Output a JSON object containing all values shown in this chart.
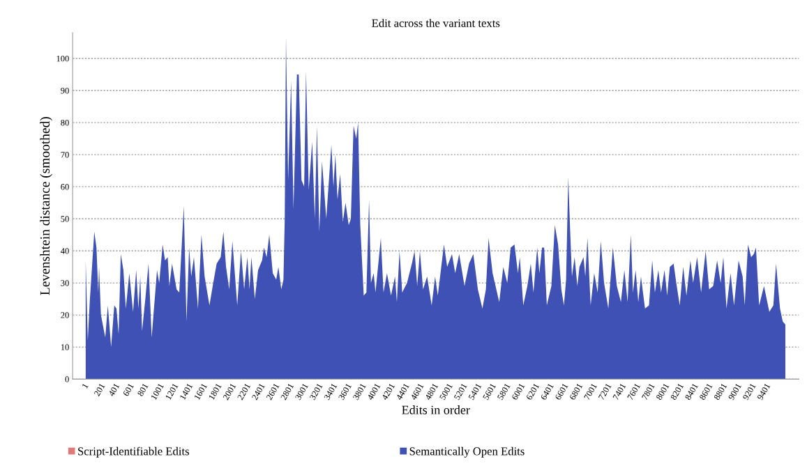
{
  "chart_data": {
    "type": "area",
    "title": "Edit across the variant texts",
    "xlabel": "Edits in order",
    "ylabel": "Levenshtein distance (smoothed)",
    "x": [
      1,
      30,
      57,
      120,
      150,
      175,
      186,
      212,
      272,
      308,
      353,
      397,
      427,
      457,
      487,
      523,
      557,
      605,
      657,
      701,
      731,
      757,
      782,
      827,
      871,
      915,
      989,
      1019,
      1067,
      1100,
      1137,
      1160,
      1197,
      1260,
      1297,
      1360,
      1397,
      1434,
      1463,
      1500,
      1556,
      1604,
      1648,
      1715,
      1760,
      1815,
      1871,
      1908,
      1945,
      1989,
      2033,
      2100,
      2152,
      2196,
      2240,
      2270,
      2296,
      2344,
      2389,
      2444,
      2470,
      2507,
      2544,
      2592,
      2640,
      2670,
      2710,
      2740,
      2758,
      2775,
      2805,
      2846,
      2879,
      2927,
      2952,
      2990,
      3027,
      3053,
      3090,
      3138,
      3175,
      3204,
      3237,
      3274,
      3333,
      3404,
      3433,
      3459,
      3489,
      3526,
      3563,
      3600,
      3644,
      3674,
      3711,
      3748,
      3774,
      3804,
      3852,
      3889,
      3926,
      3952,
      3990,
      4015,
      4089,
      4126,
      4174,
      4230,
      4285,
      4311,
      4348,
      4385,
      4452,
      4519,
      4556,
      4593,
      4630,
      4674,
      4730,
      4793,
      4841,
      4878,
      4963,
      5008,
      5074,
      5119,
      5174,
      5248,
      5311,
      5370,
      5433,
      5496,
      5544,
      5581,
      5637,
      5729,
      5785,
      5840,
      5888,
      5940,
      5988,
      6014,
      6062,
      6118,
      6166,
      6203,
      6255,
      6285,
      6322,
      6351,
      6388,
      6451,
      6499,
      6544,
      6589,
      6625,
      6655,
      6685,
      6710,
      6736,
      6773,
      6811,
      6840,
      6896,
      6921,
      6951,
      6995,
      7044,
      7092,
      7136,
      7181,
      7240,
      7303,
      7358,
      7414,
      7462,
      7507,
      7552,
      7581,
      7618,
      7655,
      7692,
      7748,
      7803,
      7848,
      7885,
      7933,
      7970,
      8018,
      8055,
      8092,
      8144,
      8181,
      8229,
      8277,
      8322,
      8377,
      8414,
      8470,
      8525,
      8588,
      8636,
      8692,
      8747,
      8796,
      8833,
      8877,
      8933,
      8981,
      9044,
      9100,
      9129,
      9174,
      9218,
      9255,
      9285,
      9329,
      9396,
      9470,
      9526,
      9563,
      9618,
      9655,
      9692
    ],
    "series": [
      {
        "name": "Script-Identifiable Edits",
        "color": "#e07a7a",
        "values": [
          null,
          null,
          null,
          null,
          null,
          null,
          null,
          null,
          null,
          null,
          null,
          null,
          null,
          null,
          null,
          null,
          null,
          null,
          null,
          null,
          null,
          null,
          null,
          null,
          null,
          null,
          null,
          null,
          null,
          null,
          null,
          null,
          null,
          null,
          null,
          null,
          null,
          null,
          null,
          null,
          null,
          null,
          null,
          null,
          null,
          null,
          null,
          null,
          null,
          null,
          null,
          null,
          null,
          null,
          null,
          null,
          null,
          null,
          null,
          null,
          null,
          null,
          null,
          null,
          null,
          null,
          null,
          null,
          null,
          null,
          null,
          null,
          null,
          null,
          null,
          null,
          null,
          null,
          null,
          null,
          null,
          null,
          null,
          null,
          null,
          null,
          null,
          null,
          null,
          null,
          null,
          null,
          null,
          null,
          null,
          null,
          null,
          null,
          null,
          null,
          null,
          null,
          null,
          null,
          null,
          null,
          null,
          null,
          null,
          null,
          null,
          null,
          null,
          null,
          null,
          null,
          null,
          null,
          null,
          null,
          null,
          null,
          null,
          null,
          null,
          null,
          null,
          null,
          null,
          null,
          null,
          null,
          null,
          null,
          null,
          null,
          null,
          null,
          null,
          null,
          null,
          null,
          null,
          null,
          null,
          null,
          null,
          null,
          null,
          null,
          null,
          null,
          null,
          null,
          null,
          null,
          null,
          null,
          null,
          null,
          null,
          null,
          null,
          null,
          null,
          null,
          null,
          null,
          null,
          null,
          null,
          null,
          null,
          null,
          null,
          null,
          null,
          null,
          null,
          null,
          null,
          null,
          null,
          null,
          null,
          null,
          null,
          null,
          null,
          null,
          null,
          null,
          null,
          null,
          null,
          null,
          null,
          null,
          null,
          null,
          null,
          null,
          null,
          null,
          null,
          null,
          null,
          null,
          null,
          null,
          null,
          null,
          null,
          null,
          null,
          null,
          null,
          null,
          null,
          null,
          null,
          null,
          null,
          null
        ]
      },
      {
        "name": "Semantically Open Edits",
        "color": "#3f51b5",
        "values": [
          37,
          12,
          24,
          46,
          41,
          27,
          35,
          20,
          13,
          23,
          10,
          23,
          22,
          14,
          39,
          34,
          22,
          33,
          21,
          34,
          22,
          32,
          15,
          25,
          36,
          13,
          34,
          30,
          42,
          37,
          38,
          29,
          36,
          28,
          27,
          54,
          18,
          41,
          32,
          38,
          22,
          45,
          32,
          23,
          29,
          36,
          38,
          46,
          35,
          28,
          43,
          23,
          40,
          28,
          38,
          28,
          38,
          25,
          34,
          37,
          41,
          38,
          45,
          33,
          31,
          35,
          28,
          31,
          50,
          107,
          62,
          93,
          53,
          95,
          95,
          62,
          60,
          96,
          59,
          74,
          50,
          79,
          46,
          68,
          50,
          73,
          60,
          70,
          56,
          64,
          49,
          55,
          48,
          50,
          79,
          75,
          80,
          48,
          26,
          27,
          56,
          30,
          33,
          27,
          44,
          27,
          33,
          26,
          32,
          24,
          40,
          27,
          30,
          36,
          40,
          29,
          40,
          28,
          32,
          23,
          32,
          26,
          42,
          35,
          39,
          33,
          39,
          29,
          36,
          39,
          28,
          22,
          28,
          44,
          33,
          24,
          35,
          30,
          41,
          42,
          33,
          38,
          23,
          29,
          36,
          27,
          41,
          33,
          41,
          41,
          23,
          29,
          48,
          42,
          28,
          23,
          31,
          63,
          47,
          32,
          38,
          29,
          35,
          38,
          32,
          44,
          23,
          33,
          27,
          43,
          30,
          22,
          41,
          29,
          24,
          34,
          24,
          45,
          27,
          34,
          24,
          32,
          22,
          23,
          37,
          27,
          34,
          27,
          34,
          26,
          35,
          36,
          30,
          23,
          35,
          26,
          37,
          30,
          38,
          27,
          40,
          28,
          29,
          37,
          30,
          38,
          22,
          33,
          23,
          37,
          32,
          23,
          42,
          38,
          39,
          41,
          23,
          29,
          21,
          23,
          36,
          22,
          18,
          17
        ]
      }
    ],
    "xlim": [
      -180,
      9880
    ],
    "xticks": [
      1,
      201,
      401,
      601,
      801,
      1001,
      1201,
      1401,
      1601,
      1801,
      2001,
      2201,
      2401,
      2601,
      2801,
      3001,
      3201,
      3401,
      3601,
      3801,
      4001,
      4201,
      4401,
      4601,
      4801,
      5001,
      5201,
      5401,
      5601,
      5801,
      6001,
      6201,
      6401,
      6601,
      6801,
      7001,
      7201,
      7401,
      7601,
      7801,
      8001,
      8201,
      8401,
      8601,
      8801,
      9001,
      9201,
      9401
    ],
    "ylim": [
      0,
      108
    ],
    "yticks": [
      0,
      10,
      20,
      30,
      40,
      50,
      60,
      70,
      80,
      90,
      100
    ],
    "grid": "y",
    "legend": "bottom"
  }
}
